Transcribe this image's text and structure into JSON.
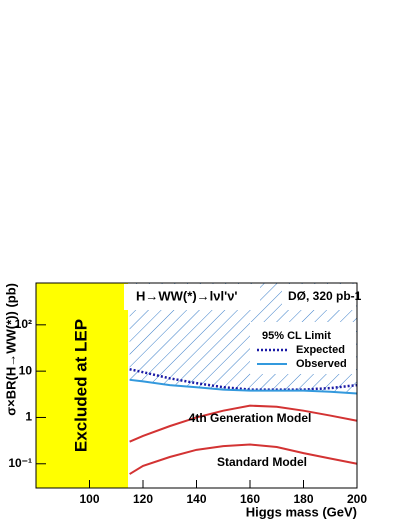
{
  "chart_data": {
    "type": "line",
    "title": "H→WW(*)→lνl'ν'",
    "subtitle": "DØ, 320 pb-1",
    "x_label": "Higgs mass (GeV)",
    "y_label": "σ×BR(H→WW(*)) (pb)",
    "legend_title": "95% CL Limit",
    "log_y": true,
    "xlim": [
      80,
      200
    ],
    "ylim": [
      0.03,
      800
    ],
    "xticks": [
      100,
      120,
      140,
      160,
      180,
      200
    ],
    "yticks": [
      {
        "value": 0.1,
        "label": "10⁻¹"
      },
      1,
      10,
      {
        "value": 100,
        "label": "10²"
      }
    ],
    "excluded_region": {
      "label": "Excluded at LEP",
      "xlim": [
        80,
        114.4
      ],
      "color": "#ffff00"
    },
    "x": [
      115,
      120,
      130,
      140,
      150,
      160,
      170,
      180,
      190,
      200
    ],
    "series": [
      {
        "name": "Expected",
        "color": "#1a1aa6",
        "values": [
          11,
          9.5,
          7,
          5.5,
          4.5,
          4,
          4,
          4,
          4.3,
          5
        ]
      },
      {
        "name": "Observed",
        "color": "#3399dd",
        "values": [
          6.5,
          6,
          5,
          4.5,
          4,
          3.8,
          3.8,
          3.8,
          3.6,
          3.3
        ]
      },
      {
        "name": "4th Generation Model",
        "color": "#d33333",
        "values": [
          0.3,
          0.4,
          0.65,
          1.0,
          1.4,
          1.8,
          1.7,
          1.4,
          1.1,
          0.85
        ]
      },
      {
        "name": "Standard Model",
        "color": "#d33333",
        "values": [
          0.06,
          0.09,
          0.14,
          0.2,
          0.24,
          0.26,
          0.23,
          0.17,
          0.13,
          0.1
        ]
      }
    ]
  }
}
